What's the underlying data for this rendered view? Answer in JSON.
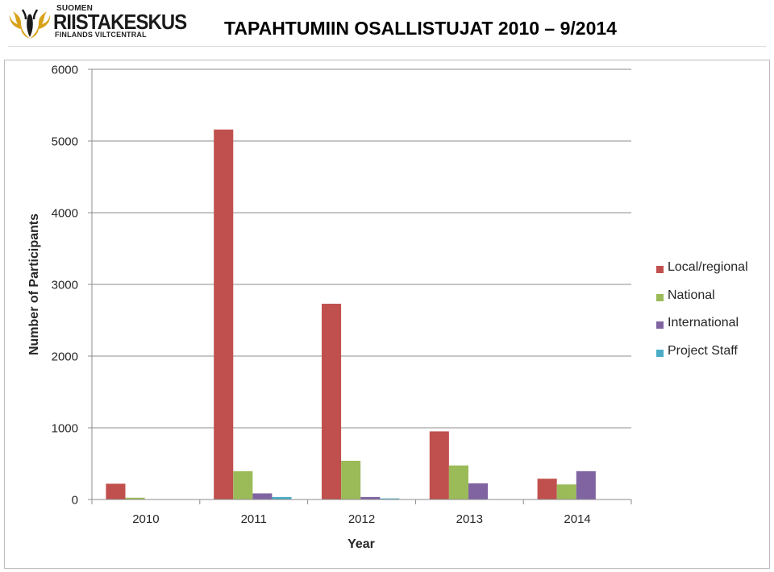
{
  "header": {
    "logo": {
      "line1": "SUOMEN",
      "line2": "RIISTAKESKUS",
      "line3": "FINLANDS VILTCENTRAL",
      "icon": "antler-logo-icon"
    },
    "title": "TAPAHTUMIIN OSALLISTUJAT 2010 – 9/2014"
  },
  "chart_data": {
    "type": "bar",
    "title": "",
    "xlabel": "Year",
    "ylabel": "Number of Participants",
    "categories": [
      "2010",
      "2011",
      "2012",
      "2013",
      "2014"
    ],
    "ylim": [
      0,
      6000
    ],
    "yticks": [
      0,
      1000,
      2000,
      3000,
      4000,
      5000,
      6000
    ],
    "grid": true,
    "legend_position": "right",
    "series": [
      {
        "name": "Local/regional",
        "color": "#c0504d",
        "values": [
          220,
          5160,
          2730,
          950,
          290
        ]
      },
      {
        "name": "National",
        "color": "#9bbb59",
        "values": [
          25,
          395,
          540,
          475,
          210
        ]
      },
      {
        "name": "International",
        "color": "#8064a2",
        "values": [
          0,
          85,
          35,
          225,
          395
        ]
      },
      {
        "name": "Project Staff",
        "color": "#4bacc6",
        "values": [
          0,
          35,
          15,
          0,
          0
        ]
      }
    ]
  }
}
